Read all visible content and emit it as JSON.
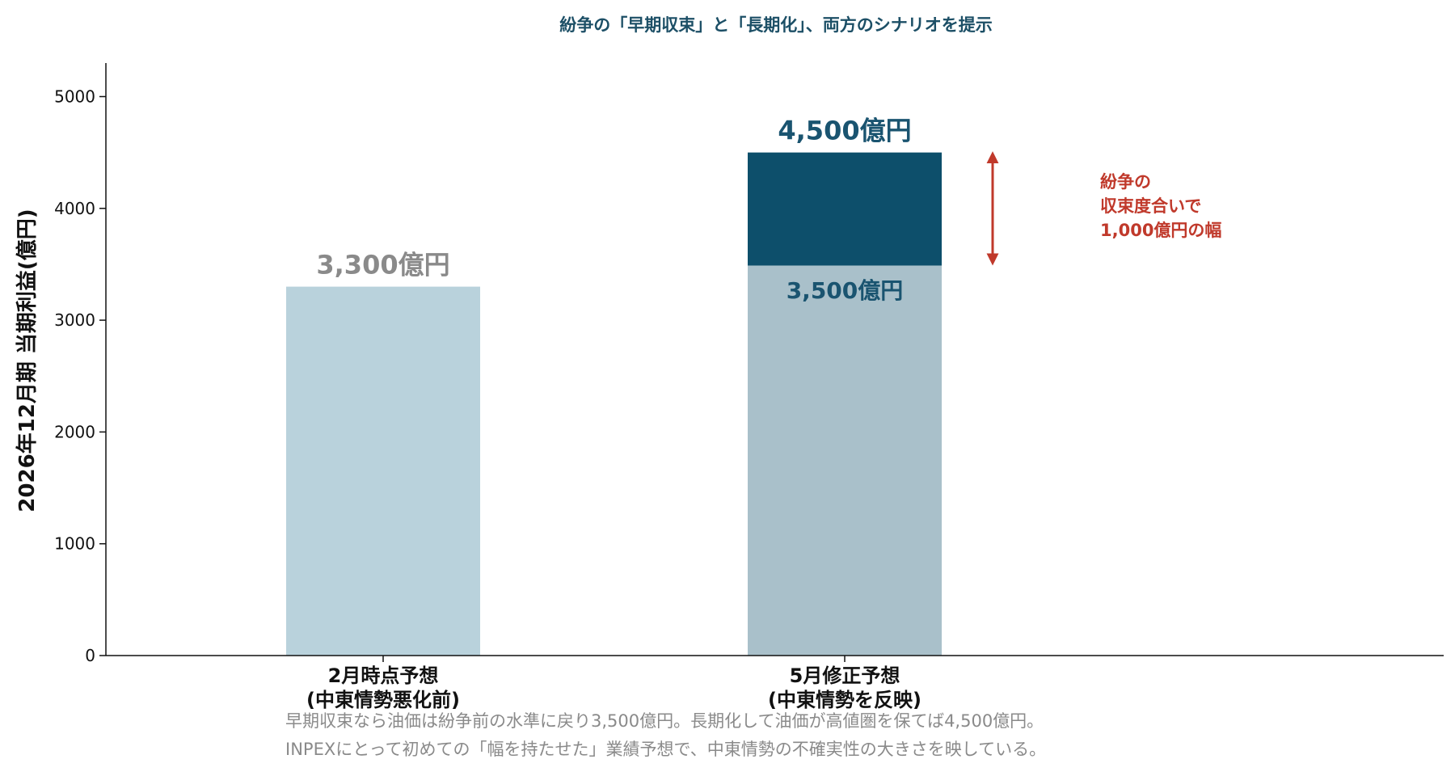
{
  "chart_data": {
    "type": "bar",
    "title": "紛争の「早期収束」と「長期化」、両方のシナリオを提示",
    "ylabel": "2026年12月期 当期利益(億円)",
    "ylim": [
      0,
      5300
    ],
    "yticks": [
      0,
      1000,
      2000,
      3000,
      4000,
      5000
    ],
    "grid": false,
    "categories": [
      {
        "line1": "2月時点予想",
        "line2": "(中東情勢悪化前)"
      },
      {
        "line1": "5月修正予想",
        "line2": "(中東情勢を反映)"
      }
    ],
    "bars": [
      {
        "value": 3300,
        "label": "3,300億円",
        "color": "#b9d2dc"
      },
      {
        "value_low": 3500,
        "value_high": 4500,
        "label_low": "3,500億円",
        "label_high": "4,500億円",
        "color_low": "#a9c0ca",
        "color_high": "#0d4f6b"
      }
    ],
    "annotation": {
      "lines": [
        "紛争の",
        "収束度合いで",
        "1,000億円の幅"
      ],
      "range": [
        3500,
        4500
      ],
      "color": "#c0392b"
    },
    "footnote": [
      "早期収束なら油価は紛争前の水準に戻り3,500億円。長期化して油価が高値圏を保てば4,500億円。",
      "INPEXにとって初めての「幅を持たせた」業績予想で、中東情勢の不確実性の大きさを映している。"
    ]
  }
}
